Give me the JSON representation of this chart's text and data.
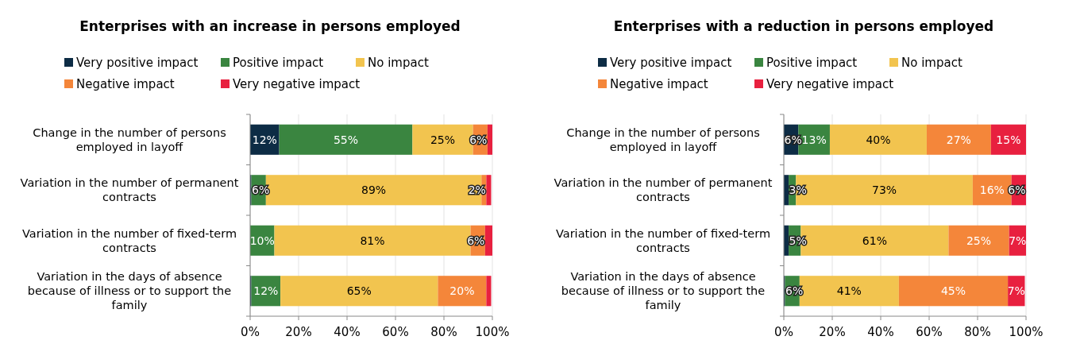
{
  "chart_data": [
    {
      "type": "bar",
      "orientation": "horizontal",
      "stacked": true,
      "title": "Enterprises with an increase in persons employed",
      "categories": [
        "Change in the number of persons employed in layoff",
        "Variation in the number of permanent contracts",
        "Variation in the number of fixed-term contracts",
        "Variation in the days of absence because of illness or to support the family"
      ],
      "xlim": [
        0,
        100
      ],
      "xticks": [
        {
          "value": 0,
          "label": "0%"
        },
        {
          "value": 20,
          "label": "20%"
        },
        {
          "value": 40,
          "label": "40%"
        },
        {
          "value": 60,
          "label": "60%"
        },
        {
          "value": 80,
          "label": "80%"
        },
        {
          "value": 100,
          "label": "100%"
        }
      ],
      "grid": "x",
      "legend": "top",
      "series": [
        {
          "name": "Very positive impact",
          "color": "#0d2c45",
          "values": [
            12,
            0.5,
            0,
            0.5
          ],
          "value_labels": [
            "12%",
            null,
            null,
            null
          ]
        },
        {
          "name": "Positive impact",
          "color": "#3a8540",
          "values": [
            55,
            6,
            10,
            12
          ],
          "value_labels": [
            "55%",
            "6%",
            "10%",
            "12%"
          ]
        },
        {
          "name": "No impact",
          "color": "#f2c44f",
          "values": [
            25,
            89,
            81,
            65
          ],
          "value_labels": [
            "25%",
            "89%",
            "81%",
            "65%"
          ]
        },
        {
          "name": "Negative impact",
          "color": "#f4863a",
          "values": [
            6,
            2,
            6,
            20
          ],
          "value_labels": [
            "6%",
            "2%",
            "6%",
            "20%"
          ]
        },
        {
          "name": "Very negative impact",
          "color": "#e8203f",
          "values": [
            2,
            2,
            3,
            2
          ],
          "value_labels": [
            null,
            null,
            null,
            null
          ]
        }
      ]
    },
    {
      "type": "bar",
      "orientation": "horizontal",
      "stacked": true,
      "title": "Enterprises with a reduction in persons employed",
      "categories": [
        "Change in the number of persons employed in layoff",
        "Variation in the number of permanent contracts",
        "Variation in the number of fixed-term contracts",
        "Variation in the days of absence because of illness or to support the family"
      ],
      "xlim": [
        0,
        100
      ],
      "xticks": [
        {
          "value": 0,
          "label": "0%"
        },
        {
          "value": 20,
          "label": "20%"
        },
        {
          "value": 40,
          "label": "40%"
        },
        {
          "value": 60,
          "label": "60%"
        },
        {
          "value": 80,
          "label": "80%"
        },
        {
          "value": 100,
          "label": "100%"
        }
      ],
      "grid": "x",
      "legend": "top",
      "series": [
        {
          "name": "Very positive impact",
          "color": "#0d2c45",
          "values": [
            6,
            2,
            2,
            0.5
          ],
          "value_labels": [
            "6%",
            null,
            null,
            null
          ]
        },
        {
          "name": "Positive impact",
          "color": "#3a8540",
          "values": [
            13,
            3,
            5,
            6
          ],
          "value_labels": [
            "13%",
            "3%",
            "5%",
            "6%"
          ]
        },
        {
          "name": "No impact",
          "color": "#f2c44f",
          "values": [
            40,
            73,
            61,
            41
          ],
          "value_labels": [
            "40%",
            "73%",
            "61%",
            "41%"
          ]
        },
        {
          "name": "Negative impact",
          "color": "#f4863a",
          "values": [
            26.5,
            16,
            25,
            45
          ],
          "value_labels": [
            "27%",
            "16%",
            "25%",
            "45%"
          ]
        },
        {
          "name": "Very negative impact",
          "color": "#e8203f",
          "values": [
            14.5,
            6,
            7,
            7
          ],
          "value_labels": [
            "15%",
            "6%",
            "7%",
            "7%"
          ]
        }
      ]
    }
  ]
}
